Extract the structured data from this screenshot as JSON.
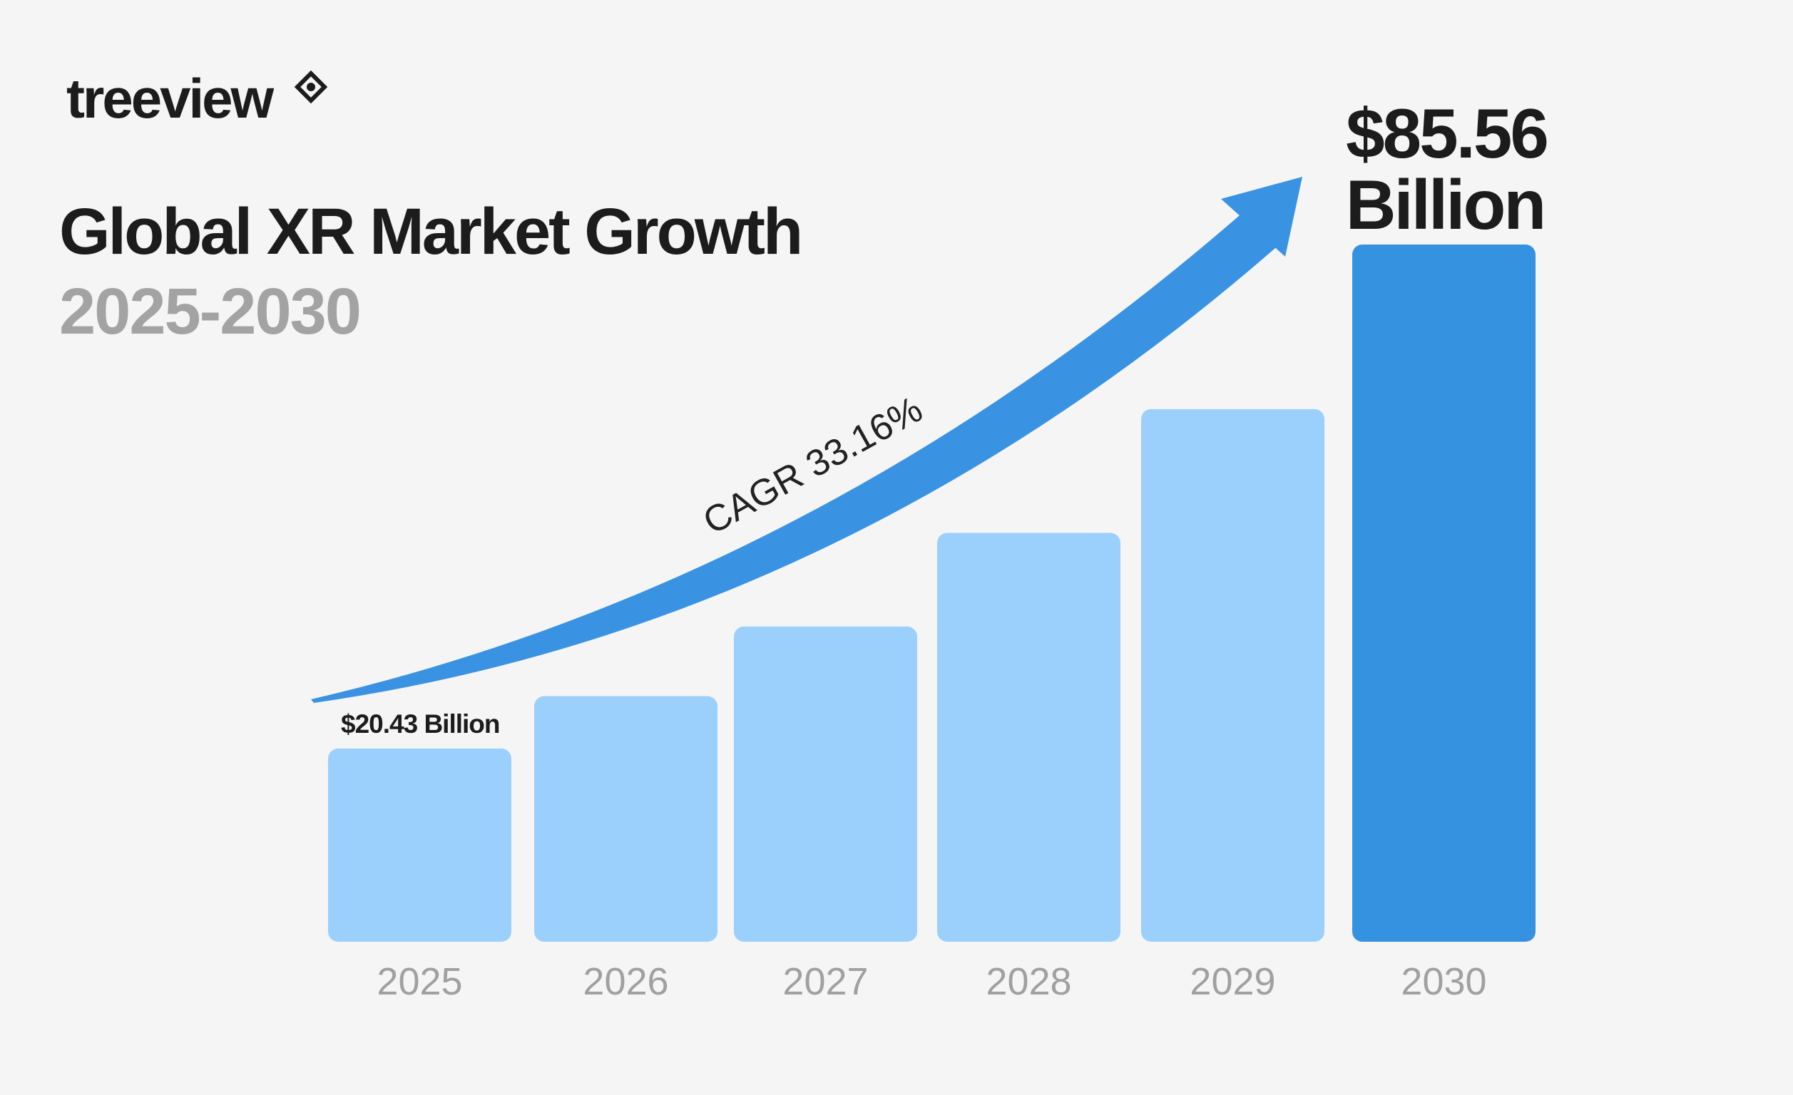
{
  "brand": {
    "name": "treeview",
    "icon": "diamond-circle-logo-icon"
  },
  "chart_data": {
    "type": "bar",
    "title": "Global XR Market Growth",
    "subtitle": "2025-2030",
    "categories": [
      "2025",
      "2026",
      "2027",
      "2028",
      "2029",
      "2030"
    ],
    "values": [
      20.43,
      27.2,
      36.2,
      48.3,
      64.3,
      85.56
    ],
    "unit": "Billion USD",
    "data_labels": {
      "first": "$20.43 Billion",
      "last_value": "$85.56",
      "last_unit": "Billion"
    },
    "annotation": "CAGR 33.16%",
    "grid": false,
    "legend": "none",
    "colors": {
      "bar": "#9bd0fd",
      "highlight_bar": "#3592e0",
      "arrow": "#3a93e2",
      "background": "#f5f5f5"
    }
  }
}
